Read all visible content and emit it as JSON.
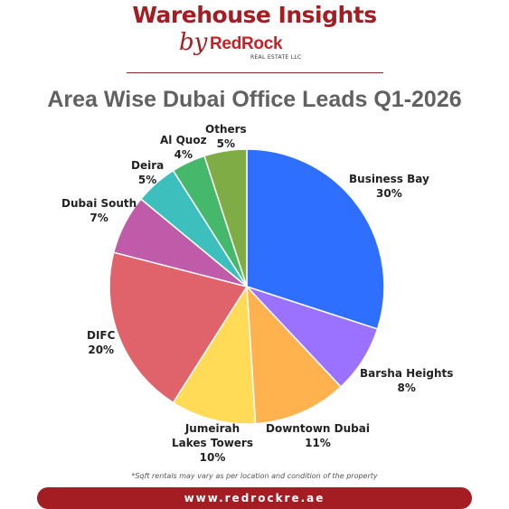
{
  "header": {
    "title": "Warehouse Insights",
    "by": "by",
    "logo_text": "RedRock",
    "logo_subtext": "REAL ESTATE LLC"
  },
  "footer": {
    "note": "*Sqft rentals may vary as per location and condition of the property",
    "url": "www.redrockre.ae"
  },
  "chart_data": {
    "type": "pie",
    "title": "Area Wise Dubai Office Leads Q1-2026",
    "slices": [
      {
        "label": "Business Bay",
        "value": 30,
        "value_label": "30%",
        "color": "#2f6fff"
      },
      {
        "label": "Barsha Heights",
        "value": 8,
        "value_label": "8%",
        "color": "#9b72ff"
      },
      {
        "label": "Downtown Dubai",
        "value": 11,
        "value_label": "11%",
        "color": "#ffb24d"
      },
      {
        "label": "Jumeirah Lakes Towers",
        "value": 10,
        "value_label": "10%",
        "color": "#ffdb57"
      },
      {
        "label": "DIFC",
        "value": 20,
        "value_label": "20%",
        "color": "#e0626a"
      },
      {
        "label": "Dubai South",
        "value": 7,
        "value_label": "7%",
        "color": "#bf5ba8"
      },
      {
        "label": "Deira",
        "value": 5,
        "value_label": "5%",
        "color": "#3dbfbe"
      },
      {
        "label": "Al Quoz",
        "value": 4,
        "value_label": "4%",
        "color": "#45b86c"
      },
      {
        "label": "Others",
        "value": 5,
        "value_label": "5%",
        "color": "#7fac45"
      }
    ]
  }
}
